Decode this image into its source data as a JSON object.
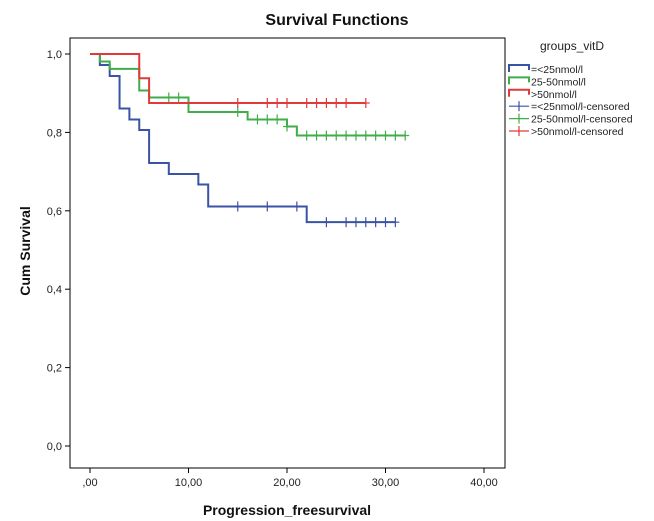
{
  "chart_data": {
    "type": "line",
    "subtype": "kaplan-meier step",
    "title": "Survival Functions",
    "xlabel": "Progression_freesurvival",
    "ylabel": "Cum Survival",
    "xlim": [
      0,
      40
    ],
    "ylim": [
      0,
      1
    ],
    "x_ticks": [
      0,
      10,
      20,
      30,
      40
    ],
    "x_tick_labels": [
      ",00",
      "10,00",
      "20,00",
      "30,00",
      "40,00"
    ],
    "y_ticks": [
      0,
      0.2,
      0.4,
      0.6,
      0.8,
      1.0
    ],
    "y_tick_labels": [
      "0,0",
      "0,2",
      "0,4",
      "0,6",
      "0,8",
      "1,0"
    ],
    "grid": false,
    "legend": {
      "title": "groups_vitD",
      "placement": "right",
      "entries": [
        {
          "label": "=<25nmol/l",
          "kind": "line",
          "color": "#3a53a4"
        },
        {
          "label": "25-50nmol/l",
          "kind": "line",
          "color": "#3fae49"
        },
        {
          "label": ">50nmol/l",
          "kind": "line",
          "color": "#e03a3a"
        },
        {
          "label": "=<25nmol/l-censored",
          "kind": "censor",
          "color": "#3a53a4"
        },
        {
          "label": "25-50nmol/l-censored",
          "kind": "censor",
          "color": "#3fae49"
        },
        {
          "label": ">50nmol/l-censored",
          "kind": "censor",
          "color": "#e03a3a"
        }
      ]
    },
    "series": [
      {
        "name": "=<25nmol/l",
        "color": "#3a53a4",
        "steps": [
          [
            0,
            1.0
          ],
          [
            1,
            0.972
          ],
          [
            2,
            0.944
          ],
          [
            3,
            0.861
          ],
          [
            4,
            0.833
          ],
          [
            5,
            0.806
          ],
          [
            6,
            0.722
          ],
          [
            8,
            0.694
          ],
          [
            11,
            0.667
          ],
          [
            12,
            0.611
          ],
          [
            22,
            0.571
          ],
          [
            31,
            0.571
          ]
        ],
        "censored": [
          [
            15,
            0.611
          ],
          [
            18,
            0.611
          ],
          [
            21,
            0.611
          ],
          [
            24,
            0.571
          ],
          [
            26,
            0.571
          ],
          [
            27,
            0.571
          ],
          [
            28,
            0.571
          ],
          [
            29,
            0.571
          ],
          [
            30,
            0.571
          ],
          [
            31,
            0.571
          ]
        ]
      },
      {
        "name": "25-50nmol/l",
        "color": "#3fae49",
        "steps": [
          [
            0,
            1.0
          ],
          [
            1,
            0.981
          ],
          [
            2,
            0.962
          ],
          [
            5,
            0.907
          ],
          [
            6,
            0.889
          ],
          [
            10,
            0.852
          ],
          [
            16,
            0.833
          ],
          [
            20,
            0.815
          ],
          [
            21,
            0.792
          ],
          [
            32,
            0.792
          ]
        ],
        "censored": [
          [
            8,
            0.889
          ],
          [
            9,
            0.889
          ],
          [
            15,
            0.852
          ],
          [
            17,
            0.833
          ],
          [
            18,
            0.833
          ],
          [
            19,
            0.833
          ],
          [
            20,
            0.815
          ],
          [
            22,
            0.792
          ],
          [
            23,
            0.792
          ],
          [
            24,
            0.792
          ],
          [
            25,
            0.792
          ],
          [
            26,
            0.792
          ],
          [
            27,
            0.792
          ],
          [
            28,
            0.792
          ],
          [
            29,
            0.792
          ],
          [
            30,
            0.792
          ],
          [
            31,
            0.792
          ],
          [
            32,
            0.792
          ]
        ]
      },
      {
        "name": ">50nmol/l",
        "color": "#e03a3a",
        "steps": [
          [
            0,
            1.0
          ],
          [
            5,
            0.938
          ],
          [
            6,
            0.875
          ],
          [
            28,
            0.875
          ]
        ],
        "censored": [
          [
            15,
            0.875
          ],
          [
            18,
            0.875
          ],
          [
            19,
            0.875
          ],
          [
            20,
            0.875
          ],
          [
            22,
            0.875
          ],
          [
            23,
            0.875
          ],
          [
            24,
            0.875
          ],
          [
            25,
            0.875
          ],
          [
            26,
            0.875
          ],
          [
            28,
            0.875
          ]
        ]
      }
    ]
  }
}
